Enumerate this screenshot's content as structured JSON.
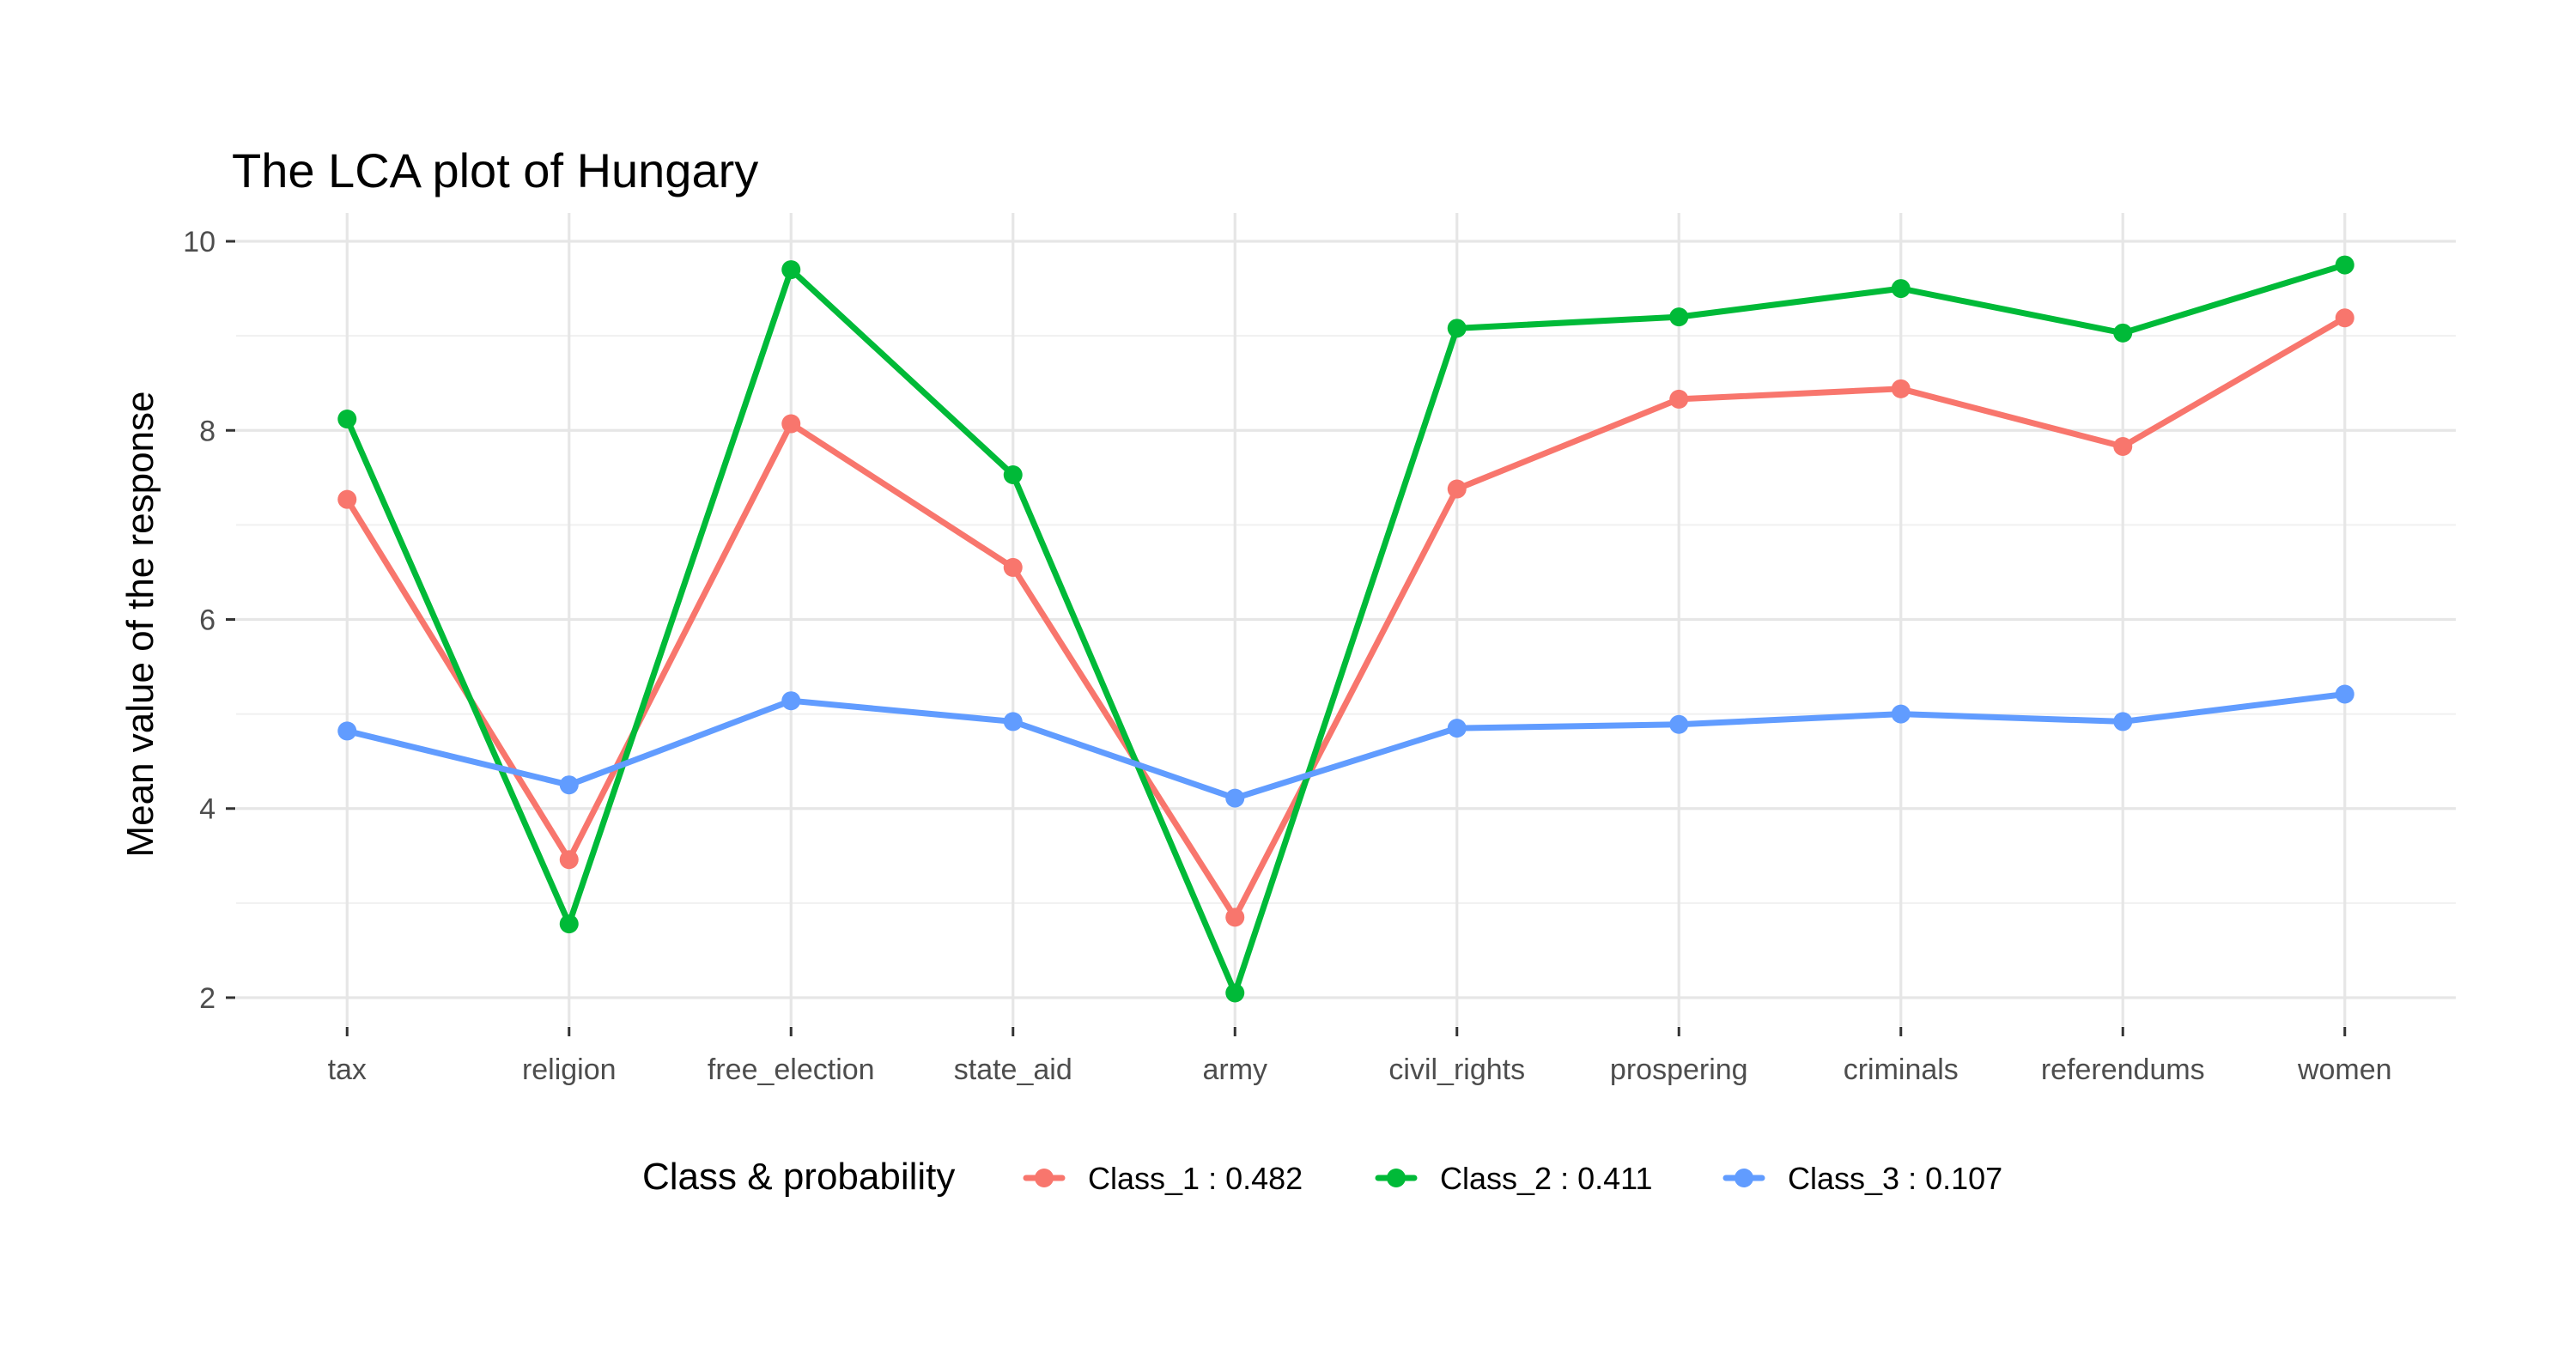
{
  "chart_data": {
    "type": "line",
    "title": "The LCA plot of Hungary",
    "xlabel": "",
    "ylabel": "Mean value of the response",
    "categories": [
      "tax",
      "religion",
      "free_election",
      "state_aid",
      "army",
      "civil_rights",
      "prospering",
      "criminals",
      "referendums",
      "women"
    ],
    "yticks": [
      2,
      4,
      6,
      8,
      10
    ],
    "ylim": [
      1.7,
      10.3
    ],
    "grid": true,
    "legend_title": "Class & probability",
    "legend_position": "bottom",
    "series": [
      {
        "name": "Class_1 : 0.482",
        "color": "#F8766D",
        "values": [
          7.27,
          3.46,
          8.07,
          6.55,
          2.85,
          7.38,
          8.33,
          8.44,
          7.83,
          9.19
        ]
      },
      {
        "name": "Class_2 : 0.411",
        "color": "#00BA38",
        "values": [
          8.12,
          2.78,
          9.7,
          7.53,
          2.05,
          9.08,
          9.2,
          9.5,
          9.03,
          9.75
        ]
      },
      {
        "name": "Class_3 : 0.107",
        "color": "#619CFF",
        "values": [
          4.82,
          4.25,
          5.14,
          4.92,
          4.11,
          4.85,
          4.89,
          5.0,
          4.92,
          5.21
        ]
      }
    ]
  }
}
